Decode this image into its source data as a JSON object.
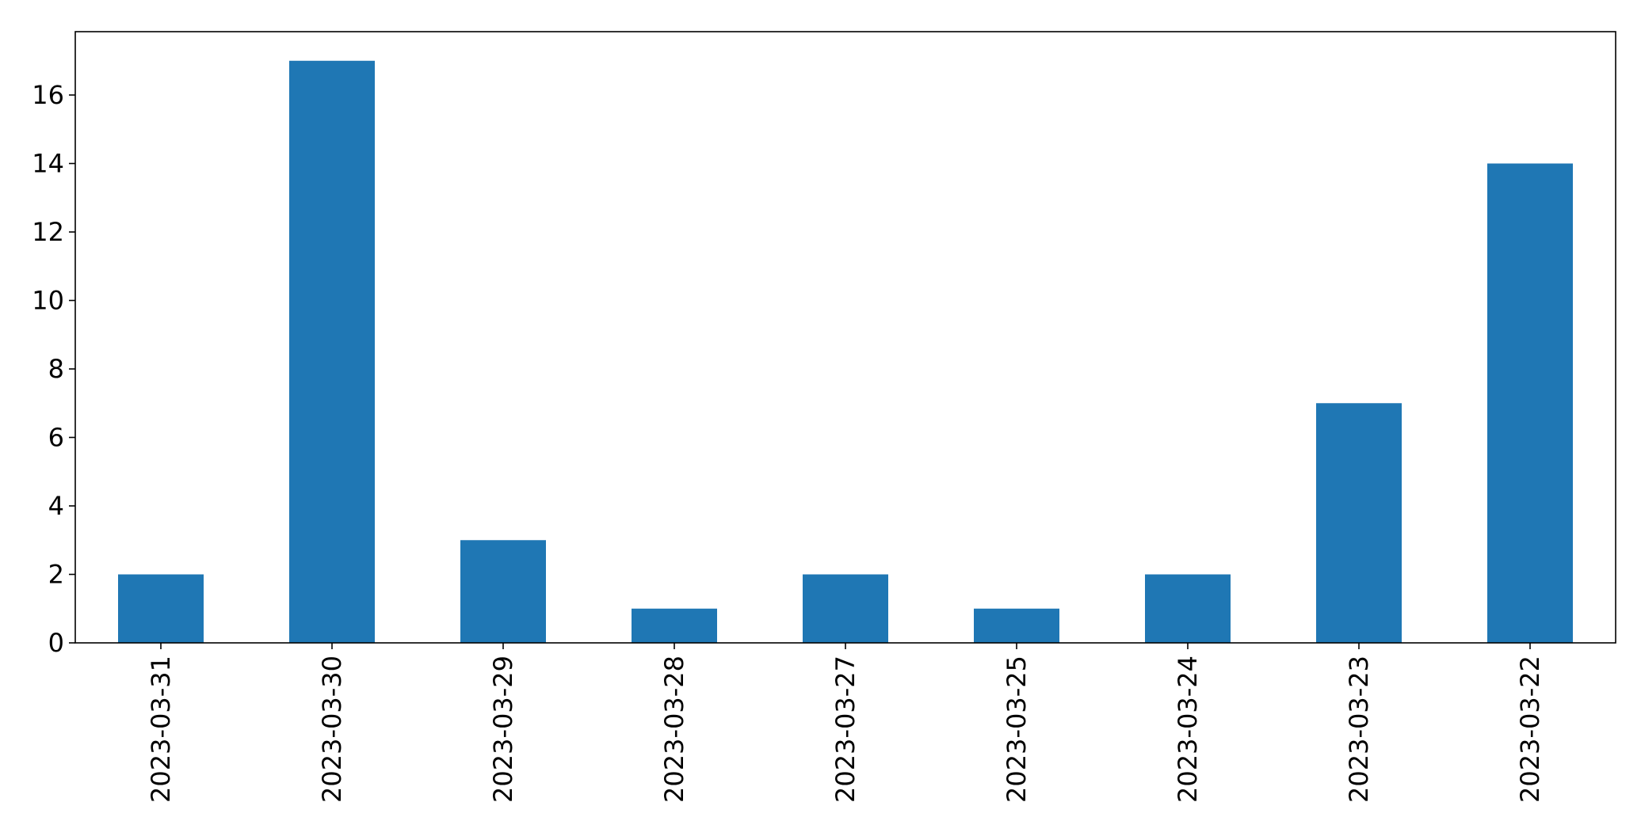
{
  "chart_data": {
    "type": "bar",
    "title": "",
    "xlabel": "",
    "ylabel": "",
    "categories": [
      "2023-03-31",
      "2023-03-30",
      "2023-03-29",
      "2023-03-28",
      "2023-03-27",
      "2023-03-25",
      "2023-03-24",
      "2023-03-23",
      "2023-03-22"
    ],
    "values": [
      2,
      17,
      3,
      1,
      2,
      1,
      2,
      7,
      14
    ],
    "ylim": [
      0,
      17.85
    ],
    "yticks": [
      0,
      2,
      4,
      6,
      8,
      10,
      12,
      14,
      16
    ],
    "bar_color": "#1f77b4",
    "grid": false,
    "legend": "none"
  }
}
